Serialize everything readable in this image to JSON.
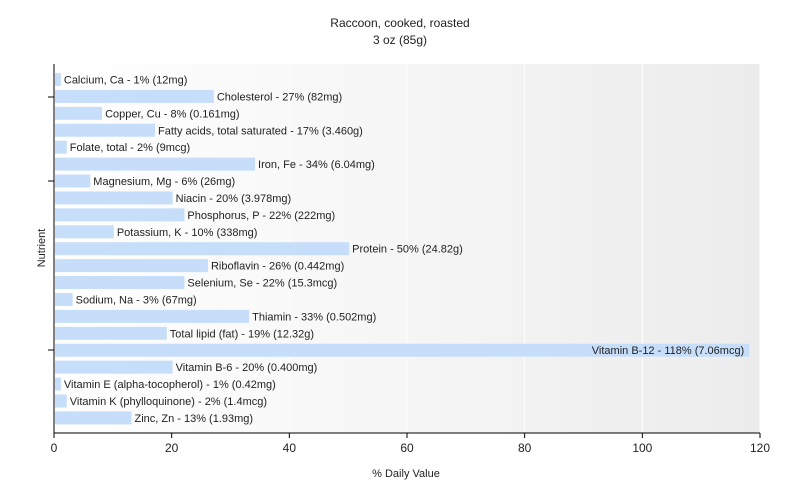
{
  "chart_data": {
    "type": "bar",
    "orientation": "horizontal",
    "title": "Raccoon, cooked, roasted",
    "subtitle": "3 oz (85g)",
    "xlabel": "% Daily Value",
    "ylabel": "Nutrient",
    "xlim": [
      0,
      120
    ],
    "xticks": [
      0,
      20,
      40,
      60,
      80,
      100,
      120
    ],
    "grid": true,
    "bar_color": "#c6defa",
    "categories": [
      "Calcium, Ca",
      "Cholesterol",
      "Copper, Cu",
      "Fatty acids, total saturated",
      "Folate, total",
      "Iron, Fe",
      "Magnesium, Mg",
      "Niacin",
      "Phosphorus, P",
      "Potassium, K",
      "Protein",
      "Riboflavin",
      "Selenium, Se",
      "Sodium, Na",
      "Thiamin",
      "Total lipid (fat)",
      "Vitamin B-12",
      "Vitamin B-6",
      "Vitamin E (alpha-tocopherol)",
      "Vitamin K (phylloquinone)",
      "Zinc, Zn"
    ],
    "values": [
      1,
      27,
      8,
      17,
      2,
      34,
      6,
      20,
      22,
      10,
      50,
      26,
      22,
      3,
      33,
      19,
      118,
      20,
      1,
      2,
      13
    ],
    "labels": [
      "Calcium, Ca - 1% (12mg)",
      "Cholesterol - 27% (82mg)",
      "Copper, Cu - 8% (0.161mg)",
      "Fatty acids, total saturated - 17% (3.460g)",
      "Folate, total - 2% (9mcg)",
      "Iron, Fe - 34% (6.04mg)",
      "Magnesium, Mg - 6% (26mg)",
      "Niacin - 20% (3.978mg)",
      "Phosphorus, P - 22% (222mg)",
      "Potassium, K - 10% (338mg)",
      "Protein - 50% (24.82g)",
      "Riboflavin - 26% (0.442mg)",
      "Selenium, Se - 22% (15.3mcg)",
      "Sodium, Na - 3% (67mg)",
      "Thiamin - 33% (0.502mg)",
      "Total lipid (fat) - 19% (12.32g)",
      "Vitamin B-12 - 118% (7.06mcg)",
      "Vitamin B-6 - 20% (0.400mg)",
      "Vitamin E (alpha-tocopherol) - 1% (0.42mg)",
      "Vitamin K (phylloquinone) - 2% (1.4mcg)",
      "Zinc, Zn - 13% (1.93mg)"
    ]
  }
}
